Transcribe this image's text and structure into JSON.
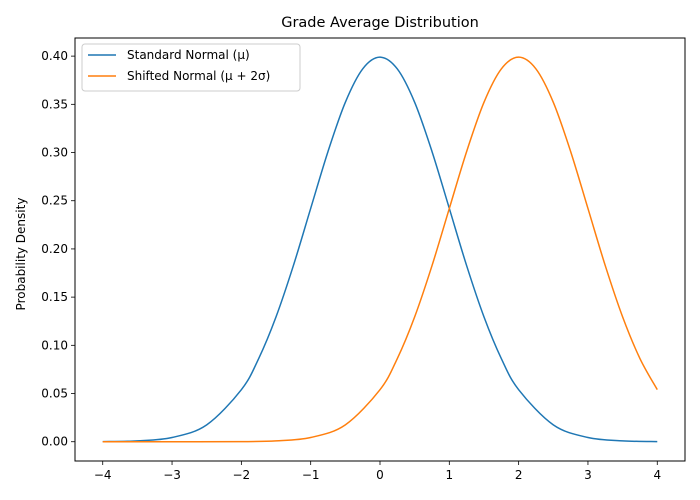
{
  "chart_data": {
    "type": "line",
    "title": "Grade Average Distribution",
    "xlabel": "",
    "ylabel": "Probability Density",
    "xlim": [
      -4.4,
      4.4
    ],
    "ylim": [
      -0.02,
      0.4188
    ],
    "xticks": [
      -4,
      -3,
      -2,
      -1,
      0,
      1,
      2,
      3,
      4
    ],
    "xtick_labels": [
      "−4",
      "−3",
      "−2",
      "−1",
      "0",
      "1",
      "2",
      "3",
      "4"
    ],
    "yticks": [
      0.0,
      0.05,
      0.1,
      0.15,
      0.2,
      0.25,
      0.3,
      0.35,
      0.4
    ],
    "ytick_labels": [
      "0.00",
      "0.05",
      "0.10",
      "0.15",
      "0.20",
      "0.25",
      "0.30",
      "0.35",
      "0.40"
    ],
    "grid": false,
    "legend_position": "top-left",
    "series": [
      {
        "name": "Standard Normal (μ)",
        "color": "#1f77b4",
        "x": [
          -4,
          -3.5,
          -3,
          -2.5,
          -2,
          -1.75,
          -1.5,
          -1.25,
          -1,
          -0.75,
          -0.5,
          -0.25,
          0,
          0.25,
          0.5,
          0.75,
          1,
          1.25,
          1.5,
          1.75,
          2,
          2.5,
          3,
          3.5,
          4
        ],
        "y": [
          0.0001,
          0.0009,
          0.0044,
          0.0175,
          0.054,
          0.0863,
          0.1295,
          0.1826,
          0.242,
          0.3011,
          0.3521,
          0.3867,
          0.3989,
          0.3867,
          0.3521,
          0.3011,
          0.242,
          0.1826,
          0.1295,
          0.0863,
          0.054,
          0.0175,
          0.0044,
          0.0009,
          0.0001
        ]
      },
      {
        "name": "Shifted Normal (μ + 2σ)",
        "color": "#ff7f0e",
        "x": [
          -4,
          -3,
          -2,
          -1.5,
          -1,
          -0.5,
          0,
          0.25,
          0.5,
          0.75,
          1,
          1.25,
          1.5,
          1.75,
          2,
          2.25,
          2.5,
          2.75,
          3,
          3.25,
          3.5,
          3.75,
          4
        ],
        "y": [
          0.0,
          0.0,
          0.0001,
          0.0009,
          0.0044,
          0.0175,
          0.054,
          0.0863,
          0.1295,
          0.1826,
          0.242,
          0.3011,
          0.3521,
          0.3867,
          0.3989,
          0.3867,
          0.3521,
          0.3011,
          0.242,
          0.1826,
          0.1295,
          0.0863,
          0.054
        ]
      }
    ]
  }
}
